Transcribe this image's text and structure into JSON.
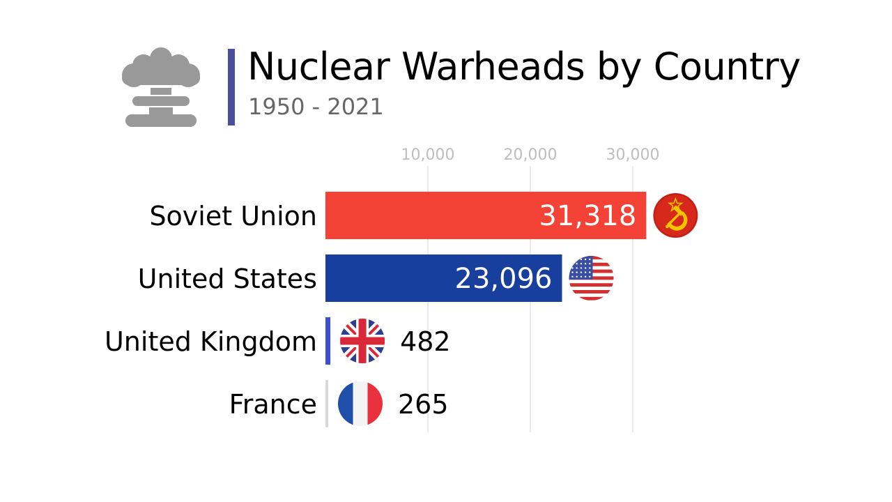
{
  "header": {
    "title": "Nuclear Warheads by Country",
    "subtitle": "1950 - 2021",
    "logo_icon": "mushroom-cloud-icon",
    "accent_color": "#4a4f9c"
  },
  "chart_data": {
    "type": "bar",
    "orientation": "horizontal",
    "title": "Nuclear Warheads by Country",
    "subtitle": "1950 - 2021",
    "categories": [
      "Soviet Union",
      "United States",
      "United Kingdom",
      "France"
    ],
    "values": [
      31318,
      23096,
      482,
      265
    ],
    "value_labels": [
      "31,318",
      "23,096",
      "482",
      "265"
    ],
    "colors": [
      "#f44336",
      "#183f9e",
      "#3c4fd1",
      "#d9d9d9"
    ],
    "flag_icons": [
      "soviet-flag-icon",
      "us-flag-icon",
      "uk-flag-icon",
      "france-flag-icon"
    ],
    "xticks": [
      10000,
      20000,
      30000
    ],
    "xtick_labels": [
      "10,000",
      "20,000",
      "30,000"
    ],
    "xlim": [
      0,
      40000
    ],
    "grid": true,
    "axis_position": "top"
  }
}
